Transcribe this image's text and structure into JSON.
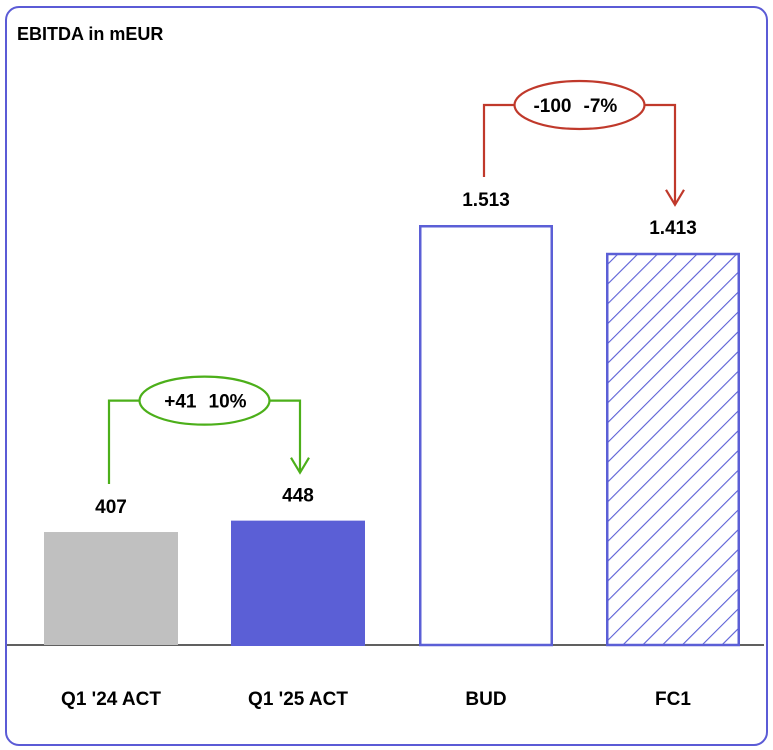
{
  "chart_data": {
    "type": "bar",
    "title": "EBITDA in mEUR",
    "categories": [
      "Q1 '24 ACT",
      "Q1 '25 ACT",
      "BUD",
      "FC1"
    ],
    "values": [
      407,
      448,
      1513,
      1413
    ],
    "value_labels": [
      "407",
      "448",
      "1.513",
      "1.413"
    ],
    "bar_styles": [
      "solid-gray",
      "solid-blue",
      "outline-blue",
      "hatched-blue"
    ],
    "colors": {
      "gray": "#c0c0c0",
      "blue": "#5b5fd6",
      "green": "#4caf1a",
      "red": "#c0392b"
    },
    "ylim": [
      0,
      1513
    ],
    "comparisons": [
      {
        "from": 0,
        "to": 1,
        "delta": "+41",
        "pct": "10%",
        "color": "#4caf1a"
      },
      {
        "from": 2,
        "to": 3,
        "delta": "-100",
        "pct": "-7%",
        "color": "#c0392b"
      }
    ]
  }
}
